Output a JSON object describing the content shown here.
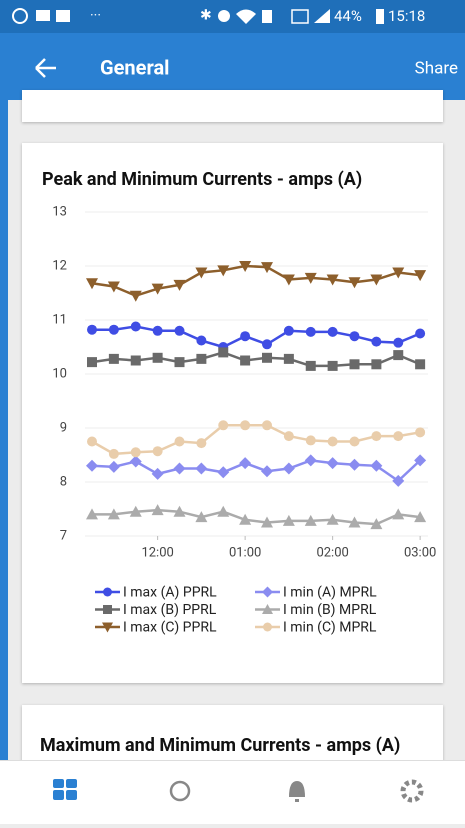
{
  "status_bar": {
    "battery": "44%",
    "time": "15:18"
  },
  "app_bar": {
    "title": "General",
    "action": "Share"
  },
  "chart_data": {
    "type": "line",
    "title": "Peak and Minimum Currents - amps (A)",
    "x": [
      11.25,
      11.5,
      11.75,
      12.0,
      12.25,
      12.5,
      12.75,
      13.0,
      13.25,
      13.5,
      13.75,
      14.0,
      14.25,
      14.5,
      14.75,
      15.0
    ],
    "xlim": [
      11.17,
      15.09
    ],
    "xticks": [
      {
        "value": 12,
        "label": "12:00"
      },
      {
        "value": 13,
        "label": "01:00"
      },
      {
        "value": 14,
        "label": "02:00"
      },
      {
        "value": 15,
        "label": "03:00"
      }
    ],
    "ylim": [
      7,
      13
    ],
    "yticks": [
      7,
      8,
      9,
      10,
      11,
      12,
      13
    ],
    "grid": true,
    "series": [
      {
        "name": "I max (A) PPRL",
        "color": "#3f4de4",
        "marker": "circle",
        "values": [
          10.82,
          10.82,
          10.88,
          10.8,
          10.8,
          10.62,
          10.5,
          10.7,
          10.55,
          10.8,
          10.78,
          10.78,
          10.7,
          10.6,
          10.58,
          10.75
        ]
      },
      {
        "name": "I min (A) MPRL",
        "color": "#8a8cf0",
        "marker": "diamond",
        "values": [
          8.3,
          8.28,
          8.38,
          8.15,
          8.25,
          8.25,
          8.18,
          8.35,
          8.2,
          8.25,
          8.4,
          8.35,
          8.32,
          8.3,
          8.02,
          8.4
        ]
      },
      {
        "name": "I max (B) PPRL",
        "color": "#6a6a6a",
        "marker": "square",
        "values": [
          10.22,
          10.28,
          10.25,
          10.3,
          10.22,
          10.28,
          10.4,
          10.25,
          10.3,
          10.28,
          10.15,
          10.15,
          10.18,
          10.18,
          10.35,
          10.18
        ]
      },
      {
        "name": "I min (B) MPRL",
        "color": "#ababab",
        "marker": "triangle",
        "values": [
          7.4,
          7.4,
          7.45,
          7.48,
          7.45,
          7.35,
          7.45,
          7.3,
          7.25,
          7.28,
          7.28,
          7.3,
          7.25,
          7.22,
          7.4,
          7.35
        ]
      },
      {
        "name": "I max (C) PPRL",
        "color": "#8d5f2c",
        "marker": "triangle-down",
        "values": [
          11.68,
          11.62,
          11.45,
          11.58,
          11.65,
          11.88,
          11.92,
          12.0,
          11.98,
          11.75,
          11.78,
          11.75,
          11.7,
          11.75,
          11.88,
          11.83
        ]
      },
      {
        "name": "I min (C) MPRL",
        "color": "#e9cdab",
        "marker": "circle",
        "values": [
          8.75,
          8.52,
          8.55,
          8.57,
          8.75,
          8.72,
          9.05,
          9.05,
          9.05,
          8.85,
          8.77,
          8.75,
          8.75,
          8.85,
          8.85,
          8.92
        ]
      }
    ]
  },
  "next_card": {
    "title": "Maximum and Minimum Currents - amps (A)"
  }
}
